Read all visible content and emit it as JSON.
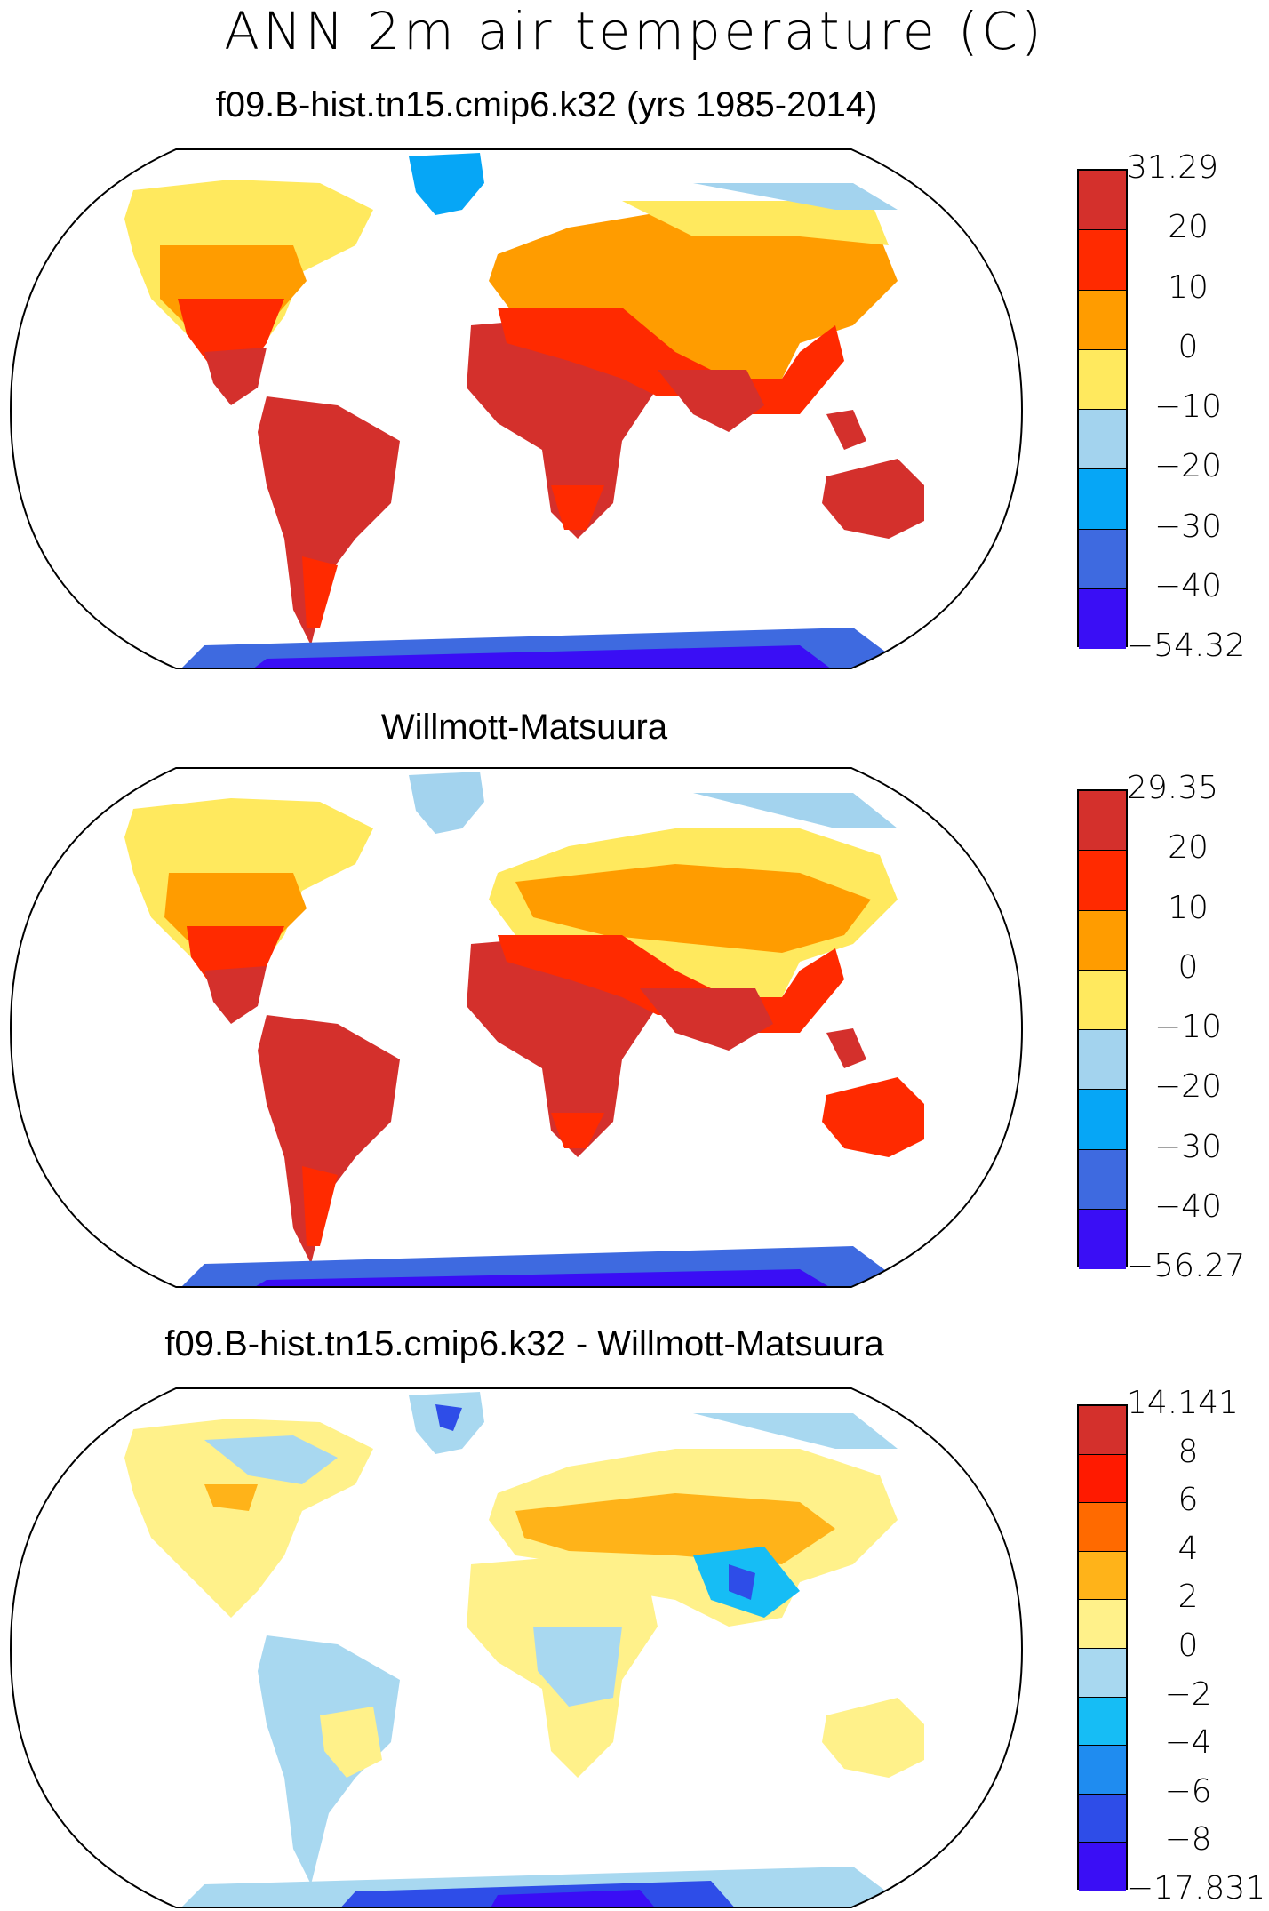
{
  "figure": {
    "title": "ANN 2m air temperature (C)"
  },
  "panels": [
    {
      "title": "f09.B-hist.tn15.cmip6.k32 (yrs 1985-2014)",
      "colorbar": {
        "colors": [
          "#d4302c",
          "#ff2a00",
          "#ff9c00",
          "#ffe95e",
          "#a3d3ee",
          "#06a6f6",
          "#3e6ae0",
          "#3a0ef5"
        ],
        "labels": [
          "31.29",
          "20",
          "10",
          "0",
          "−10",
          "−20",
          "−30",
          "−40",
          "−54.32"
        ]
      }
    },
    {
      "title": "Willmott-Matsuura",
      "colorbar": {
        "colors": [
          "#d4302c",
          "#ff2a00",
          "#ff9c00",
          "#ffe95e",
          "#a3d3ee",
          "#06a6f6",
          "#3e6ae0",
          "#3a0ef5"
        ],
        "labels": [
          "29.35",
          "20",
          "10",
          "0",
          "−10",
          "−20",
          "−30",
          "−40",
          "−56.27"
        ]
      }
    },
    {
      "title": "f09.B-hist.tn15.cmip6.k32 - Willmott-Matsuura",
      "colorbar": {
        "colors": [
          "#d4302c",
          "#ff1a00",
          "#ff6a00",
          "#ffb319",
          "#fff18a",
          "#a8d8f0",
          "#16bdf5",
          "#1f8cf0",
          "#2e4de8",
          "#3a0ef5"
        ],
        "labels": [
          "14.141",
          "8",
          "6",
          "4",
          "2",
          "0",
          "−2",
          "−4",
          "−6",
          "−8",
          "−17.831"
        ]
      }
    }
  ]
}
